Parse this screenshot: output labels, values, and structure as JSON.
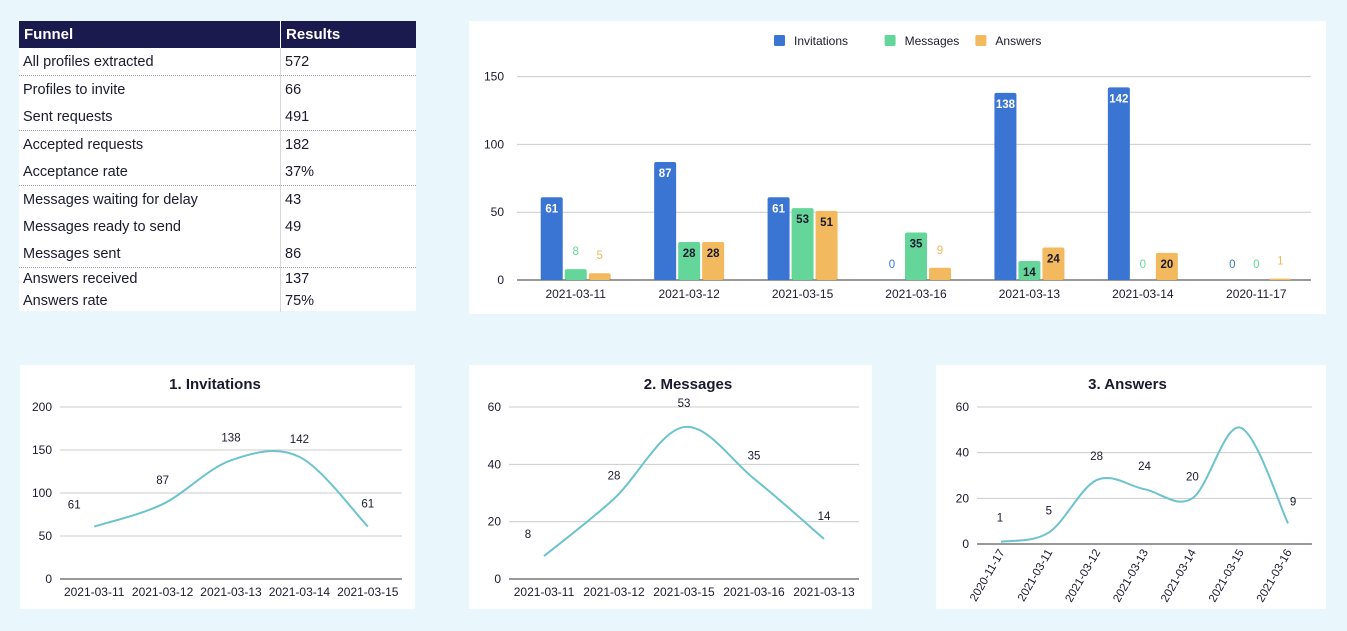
{
  "funnel": {
    "header": {
      "col1": "Funnel",
      "col2": "Results"
    },
    "rows": [
      {
        "label": "All profiles extracted",
        "value": "572"
      },
      {
        "label": "Profiles to invite",
        "value": "66"
      },
      {
        "label": "Sent requests",
        "value": "491"
      },
      {
        "label": "Accepted requests",
        "value": "182"
      },
      {
        "label": "Acceptance rate",
        "value": "37%"
      },
      {
        "label": "Messages waiting for delay",
        "value": "43"
      },
      {
        "label": "Messages ready to send",
        "value": "49"
      },
      {
        "label": "Messages sent",
        "value": "86"
      },
      {
        "label": "Answers received",
        "value": "137"
      },
      {
        "label": "Answers rate",
        "value": "75%"
      }
    ]
  },
  "colors": {
    "invitations": "#3a75d3",
    "messages": "#65d69a",
    "answers": "#f2b95e",
    "line": "#6cc3cc",
    "axis_text": "#1a1a2e",
    "grid": "#cccccc"
  },
  "chart_data": [
    {
      "id": "bar",
      "type": "bar",
      "legend_position": "top",
      "categories": [
        "2021-03-11",
        "2021-03-12",
        "2021-03-15",
        "2021-03-16",
        "2021-03-13",
        "2021-03-14",
        "2020-11-17"
      ],
      "series": [
        {
          "name": "Invitations",
          "values": [
            61,
            87,
            61,
            0,
            138,
            142,
            0
          ]
        },
        {
          "name": "Messages",
          "values": [
            8,
            28,
            53,
            35,
            14,
            0,
            0
          ]
        },
        {
          "name": "Answers",
          "values": [
            5,
            28,
            51,
            9,
            24,
            20,
            1
          ]
        }
      ],
      "ylim": [
        0,
        160
      ],
      "yticks": [
        0,
        50,
        100,
        150
      ],
      "grid": true
    },
    {
      "id": "line1",
      "type": "line",
      "title": "1. Invitations",
      "x": [
        "2021-03-11",
        "2021-03-12",
        "2021-03-13",
        "2021-03-14",
        "2021-03-15"
      ],
      "values": [
        61,
        87,
        138,
        142,
        61
      ],
      "ylim": [
        0,
        200
      ],
      "yticks": [
        0,
        50,
        100,
        150,
        200
      ],
      "grid": true
    },
    {
      "id": "line2",
      "type": "line",
      "title": "2. Messages",
      "x": [
        "2021-03-11",
        "2021-03-12",
        "2021-03-15",
        "2021-03-16",
        "2021-03-13"
      ],
      "values": [
        8,
        28,
        53,
        35,
        14
      ],
      "ylim": [
        0,
        60
      ],
      "yticks": [
        0,
        20,
        40,
        60
      ],
      "grid": true
    },
    {
      "id": "line3",
      "type": "line",
      "title": "3. Answers",
      "x": [
        "2020-11-17",
        "2021-03-11",
        "2021-03-12",
        "2021-03-13",
        "2021-03-14",
        "2021-03-15",
        "2021-03-16"
      ],
      "values": [
        1,
        5,
        28,
        24,
        20,
        51,
        9
      ],
      "value_labels": [
        "1",
        "5",
        "28",
        "24",
        "20",
        "",
        "9"
      ],
      "ylim": [
        0,
        60
      ],
      "yticks": [
        0,
        20,
        40,
        60
      ],
      "grid": true,
      "rotate_x_labels": true
    }
  ]
}
